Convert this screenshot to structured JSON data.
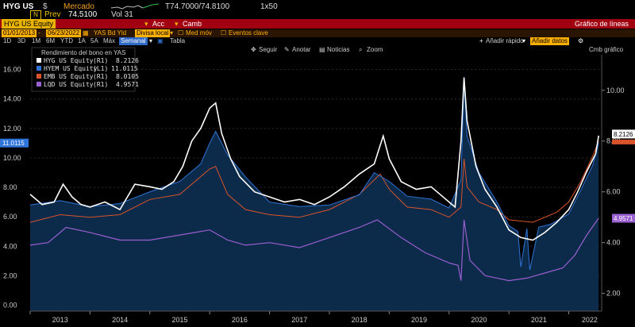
{
  "quote": {
    "ticker": "HYG US",
    "currency": "$",
    "market_label": "Mercado",
    "last_range": "T74.7000/74.8100",
    "size": "1x50",
    "prev_label": "Prev",
    "prev_value": "74.5100",
    "volume": "Vol 31"
  },
  "function_bar": {
    "security": "HYG US Equity",
    "action_label": "Acc",
    "change_label": "Camb",
    "title": "Gráfico de líneas"
  },
  "fields": {
    "start_date": "01/01/2013",
    "end_date": "06/23/2022",
    "field": "YAS Bd Yld",
    "currency_mode": "Divisa local",
    "average": "Med móv",
    "events": "Eventos clave"
  },
  "periods": {
    "items": [
      "1D",
      "3D",
      "1M",
      "6M",
      "YTD",
      "1A",
      "5A",
      "Máx"
    ],
    "selected": "Semanal",
    "table_label": "Tabla",
    "quick_add": "Añadir rápido",
    "add_data": "Añadir datos",
    "change_chart": "Cmb gráfico"
  },
  "chart_tools": [
    "Seguir",
    "Anotar",
    "Noticias",
    "Zoom"
  ],
  "colors": {
    "hyg": "#ffffff",
    "hyem": "#2f74d8",
    "emb": "#d9542a",
    "lqd": "#9a5fd0",
    "area_fill": "#0c2a4a",
    "accent_red": "#a00010",
    "accent_amber": "#ffb000"
  },
  "chart_data": {
    "type": "line",
    "title": "Rendimiento del bono en YAS",
    "x_ticks": [
      "2013",
      "2014",
      "2015",
      "2016",
      "2017",
      "2018",
      "2019",
      "2020",
      "2021",
      "2022"
    ],
    "x_range": [
      2013.0,
      2022.55
    ],
    "left_axis": {
      "ticks": [
        "0.00",
        "2.00",
        "4.00",
        "6.00",
        "8.00",
        "10.00",
        "12.00",
        "14.00",
        "16.00"
      ],
      "range": [
        -0.4,
        17.0
      ]
    },
    "right_axis": {
      "ticks": [
        "2.00",
        "4.00",
        "6.00",
        "8.00",
        "10.00"
      ],
      "range": [
        1.3,
        11.4
      ]
    },
    "legend_position": "top-left",
    "series": [
      {
        "name": "HYG US Equity",
        "axis_label": "(R1)",
        "last": "8.2126",
        "axis": "right",
        "x": [
          2013.0,
          2013.2,
          2013.4,
          2013.55,
          2013.7,
          2013.85,
          2014.0,
          2014.25,
          2014.5,
          2014.75,
          2015.0,
          2015.2,
          2015.4,
          2015.55,
          2015.7,
          2015.85,
          2016.0,
          2016.1,
          2016.2,
          2016.35,
          2016.5,
          2016.75,
          2017.0,
          2017.25,
          2017.5,
          2017.75,
          2018.0,
          2018.25,
          2018.5,
          2018.75,
          2018.9,
          2019.0,
          2019.2,
          2019.45,
          2019.7,
          2019.95,
          2020.0,
          2020.1,
          2020.2,
          2020.25,
          2020.3,
          2020.45,
          2020.6,
          2020.8,
          2021.0,
          2021.2,
          2021.4,
          2021.6,
          2021.8,
          2022.0,
          2022.15,
          2022.3,
          2022.45,
          2022.5
        ],
        "y": [
          5.9,
          5.5,
          5.6,
          6.3,
          5.8,
          5.5,
          5.4,
          5.6,
          5.3,
          6.3,
          6.2,
          6.1,
          6.4,
          7.0,
          8.0,
          8.5,
          9.3,
          9.5,
          8.3,
          7.3,
          6.6,
          6.0,
          5.8,
          5.6,
          5.7,
          5.5,
          5.8,
          6.2,
          6.7,
          7.1,
          8.2,
          7.3,
          6.4,
          6.1,
          6.2,
          5.7,
          5.6,
          5.4,
          8.0,
          10.5,
          8.8,
          7.0,
          6.1,
          5.4,
          4.5,
          4.2,
          4.1,
          4.4,
          4.8,
          5.3,
          6.0,
          6.8,
          7.5,
          8.2126
        ]
      },
      {
        "name": "HYEM US Equity",
        "axis_label": "(L1)",
        "last": "11.0115",
        "axis": "left",
        "x": [
          2013.0,
          2013.5,
          2014.0,
          2014.5,
          2015.0,
          2015.5,
          2015.85,
          2016.0,
          2016.1,
          2016.3,
          2016.6,
          2017.0,
          2017.5,
          2018.0,
          2018.5,
          2018.75,
          2019.0,
          2019.3,
          2019.7,
          2020.0,
          2020.2,
          2020.25,
          2020.3,
          2020.5,
          2020.8,
          2021.0,
          2021.15,
          2021.2,
          2021.3,
          2021.35,
          2021.5,
          2021.7,
          2022.0,
          2022.2,
          2022.4,
          2022.5
        ],
        "y": [
          6.8,
          7.1,
          6.7,
          6.9,
          7.7,
          8.4,
          9.6,
          11.0,
          11.8,
          10.2,
          8.7,
          7.0,
          6.7,
          6.8,
          7.5,
          9.0,
          8.4,
          7.4,
          7.2,
          6.6,
          8.5,
          15.5,
          11.5,
          9.0,
          7.0,
          5.4,
          5.0,
          2.6,
          5.2,
          2.4,
          5.3,
          5.5,
          6.2,
          7.8,
          9.5,
          11.0115
        ]
      },
      {
        "name": "EMB US Equity",
        "axis_label": "(R1)",
        "last": "8.0105",
        "axis": "right",
        "x": [
          2013.0,
          2013.5,
          2014.0,
          2014.5,
          2015.0,
          2015.5,
          2015.85,
          2016.0,
          2016.1,
          2016.3,
          2016.6,
          2017.0,
          2017.5,
          2018.0,
          2018.5,
          2018.85,
          2019.0,
          2019.3,
          2019.7,
          2020.0,
          2020.2,
          2020.25,
          2020.3,
          2020.5,
          2020.8,
          2021.0,
          2021.4,
          2021.8,
          2022.0,
          2022.2,
          2022.4,
          2022.5
        ],
        "y": [
          4.8,
          5.1,
          5.0,
          5.1,
          5.7,
          5.9,
          6.6,
          6.9,
          7.0,
          5.9,
          5.3,
          5.1,
          5.0,
          5.3,
          5.9,
          6.7,
          6.1,
          5.4,
          5.3,
          5.0,
          5.4,
          7.3,
          6.2,
          5.6,
          5.3,
          4.9,
          4.8,
          5.2,
          5.6,
          6.4,
          7.4,
          8.0105
        ]
      },
      {
        "name": "LQD US Equity",
        "axis_label": "(R1)",
        "last": "4.9571",
        "axis": "right",
        "x": [
          2013.0,
          2013.3,
          2013.6,
          2014.0,
          2014.5,
          2015.0,
          2015.5,
          2016.0,
          2016.3,
          2016.6,
          2017.0,
          2017.5,
          2018.0,
          2018.5,
          2018.8,
          2019.2,
          2019.6,
          2020.0,
          2020.15,
          2020.2,
          2020.25,
          2020.35,
          2020.6,
          2020.8,
          2021.0,
          2021.3,
          2021.6,
          2021.9,
          2022.1,
          2022.3,
          2022.45,
          2022.5
        ],
        "y": [
          3.9,
          4.0,
          4.6,
          4.4,
          4.1,
          4.1,
          4.3,
          4.5,
          4.1,
          3.9,
          4.0,
          3.8,
          4.2,
          4.6,
          4.9,
          4.2,
          3.6,
          3.2,
          3.1,
          2.5,
          4.9,
          3.3,
          2.7,
          2.6,
          2.5,
          2.6,
          2.8,
          3.0,
          3.5,
          4.3,
          4.8,
          4.9571
        ]
      }
    ]
  }
}
